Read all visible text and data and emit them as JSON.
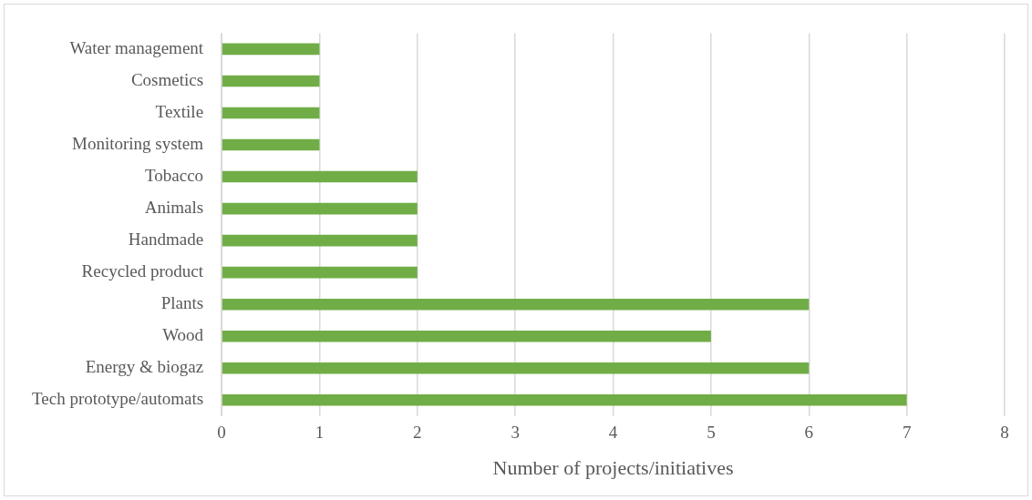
{
  "chart_data": {
    "type": "bar",
    "orientation": "horizontal",
    "xlabel": "Number of projects/initiatives",
    "categories": [
      "Water management",
      "Cosmetics",
      "Textile",
      "Monitoring system",
      "Tobacco",
      "Animals",
      "Handmade",
      "Recycled product",
      "Plants",
      "Wood",
      "Energy & biogaz",
      "Tech prototype/automats"
    ],
    "values": [
      1,
      1,
      1,
      1,
      2,
      2,
      2,
      2,
      6,
      5,
      6,
      7
    ],
    "color": "#70ad47",
    "xlim": [
      0,
      8
    ],
    "xticks": [
      0,
      1,
      2,
      3,
      4,
      5,
      6,
      7,
      8
    ],
    "grid": "x",
    "legend": false
  }
}
